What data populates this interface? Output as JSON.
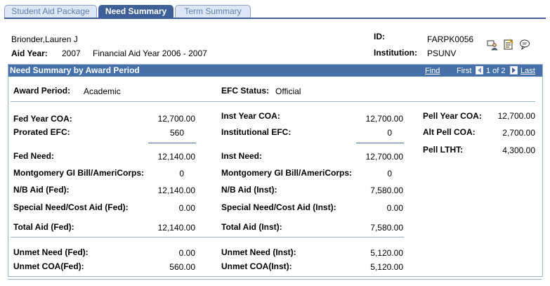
{
  "tabs": [
    {
      "label": "Student Aid Package"
    },
    {
      "label": "Need Summary"
    },
    {
      "label": "Term Summary"
    }
  ],
  "header": {
    "student_name": "Brionder,Lauren J",
    "aid_year_label": "Aid Year:",
    "aid_year_value": "2007",
    "aid_year_desc": "Financial Aid Year 2006 - 2007",
    "id_label": "ID:",
    "id_value": "FARPK0056",
    "institution_label": "Institution:",
    "institution_value": "PSUNV"
  },
  "icons": [
    "person-select-icon",
    "notepad-icon",
    "comment-icon"
  ],
  "panel": {
    "title": "Need Summary by Award Period",
    "find": "Find",
    "first": "First",
    "pager": "1 of 2",
    "last": "Last",
    "award_period_label": "Award Period:",
    "award_period_value": "Academic",
    "efc_status_label": "EFC Status:",
    "efc_status_value": "Official",
    "fed": {
      "year_coa_label": "Fed Year COA:",
      "year_coa": "12,700.00",
      "prorated_efc_label": "Prorated EFC:",
      "prorated_efc": "560",
      "need_label": "Fed Need:",
      "need": "12,140.00",
      "gi_label": "Montgomery GI Bill/AmeriCorps:",
      "gi": "0",
      "nb_aid_label": "N/B Aid (Fed):",
      "nb_aid": "12,140.00",
      "special_label": "Special Need/Cost Aid (Fed):",
      "special": "0.00",
      "total_label": "Total Aid (Fed):",
      "total": "12,140.00",
      "unmet_need_label": "Unmet Need (Fed):",
      "unmet_need": "0.00",
      "unmet_coa_label": "Unmet COA(Fed):",
      "unmet_coa": "560.00"
    },
    "inst": {
      "year_coa_label": "Inst Year COA:",
      "year_coa": "12,700.00",
      "efc_label": "Institutional EFC:",
      "efc": "0",
      "need_label": "Inst Need:",
      "need": "12,700.00",
      "gi_label": "Montgomery GI Bill/AmeriCorps:",
      "gi": "0",
      "nb_aid_label": "N/B Aid (Inst):",
      "nb_aid": "7,580.00",
      "special_label": "Special Need/Cost Aid (Inst):",
      "special": "0.00",
      "total_label": "Total Aid (Inst):",
      "total": "7,580.00",
      "unmet_need_label": "Unmet Need (Inst):",
      "unmet_need": "5,120.00",
      "unmet_coa_label": "Unmet COA(Inst):",
      "unmet_coa": "5,120.00"
    },
    "pell": {
      "year_coa_label": "Pell Year COA:",
      "year_coa": "12,700.00",
      "alt_coa_label": "Alt Pell COA:",
      "alt_coa": "2,700.00",
      "ltht_label": "Pell LTHT:",
      "ltht": "4,300.00"
    }
  }
}
